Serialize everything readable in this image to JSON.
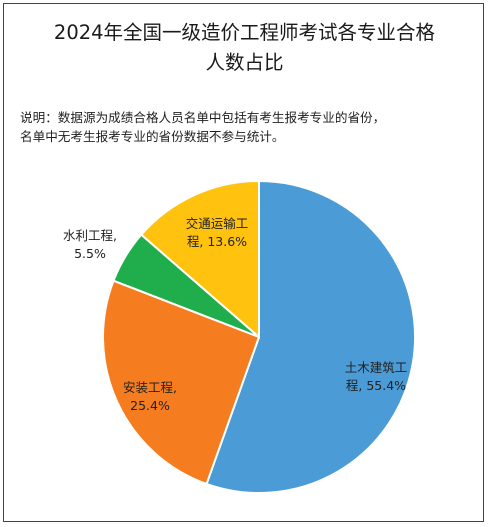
{
  "chart_data": {
    "type": "pie",
    "title_lines": [
      "2024年全国一级造价工程师考试各专业合格",
      "人数占比"
    ],
    "note_lines": [
      "说明：数据源为成绩合格人员名单中包括有考生报考专业的省份，",
      "名单中无考生报考专业的省份数据不参与统计。"
    ],
    "slices": [
      {
        "name": "土木建筑工程",
        "value": 55.4,
        "color": "#4A9BD6",
        "label_lines": [
          "土木建筑工",
          "程, 55.4%"
        ]
      },
      {
        "name": "安装工程",
        "value": 25.4,
        "color": "#F57C1F",
        "label_lines": [
          "安装工程,",
          "25.4%"
        ]
      },
      {
        "name": "水利工程",
        "value": 5.5,
        "color": "#1FAE4B",
        "label_lines": [
          "水利工程,",
          "5.5%"
        ]
      },
      {
        "name": "交通运输工程",
        "value": 13.6,
        "color": "#FFC20E",
        "label_lines": [
          "交通运输工",
          "程, 13.6%"
        ]
      }
    ]
  }
}
